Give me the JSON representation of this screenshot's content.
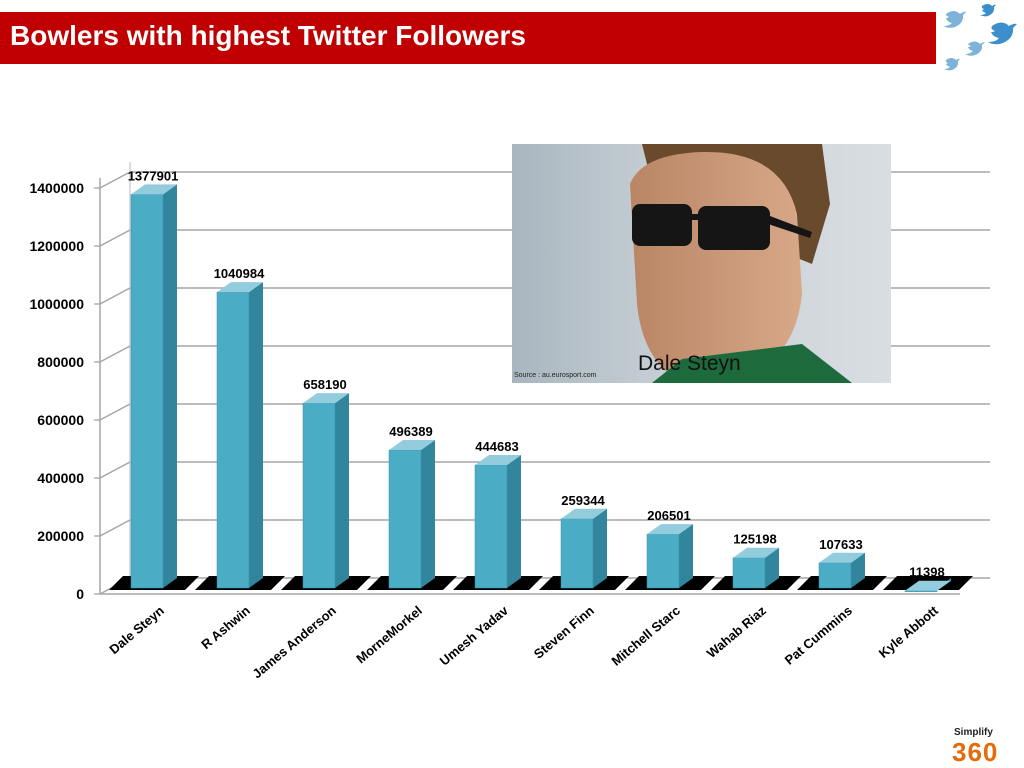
{
  "header": {
    "title": "Bowlers with highest Twitter Followers"
  },
  "photo": {
    "caption": "Dale Steyn",
    "source": "Source : au.eurosport.com"
  },
  "logo": {
    "small": "Simplify",
    "big": "360"
  },
  "chart_data": {
    "type": "bar",
    "categories": [
      "Dale Steyn",
      "R Ashwin",
      "James Anderson",
      "MorneMorkel",
      "Umesh Yadav",
      "Steven Finn",
      "Mitchell Starc",
      "Wahab Riaz",
      "Pat Cummins",
      "Kyle Abbott"
    ],
    "values": [
      1377901,
      1040984,
      658190,
      496389,
      444683,
      259344,
      206501,
      125198,
      107633,
      11398
    ],
    "value_labels": [
      "1377901",
      "1040984",
      "658190",
      "496389",
      "444683",
      "259344",
      "206501",
      "125198",
      "107633",
      "11398"
    ],
    "y_ticks": [
      0,
      200000,
      400000,
      600000,
      800000,
      1000000,
      1200000,
      1400000
    ],
    "y_tick_labels": [
      "0",
      "200000",
      "400000",
      "600000",
      "800000",
      "1000000",
      "1200000",
      "1400000"
    ],
    "ylim": [
      0,
      1400000
    ],
    "grid": true,
    "legend": "none",
    "bar_color": "#4bacc6"
  },
  "colors": {
    "title_bar": "#c00000",
    "bar": "#4bacc6",
    "bar_side": "#31859c",
    "bar_top": "#93cddd",
    "logo_accent": "#e46c0a"
  }
}
